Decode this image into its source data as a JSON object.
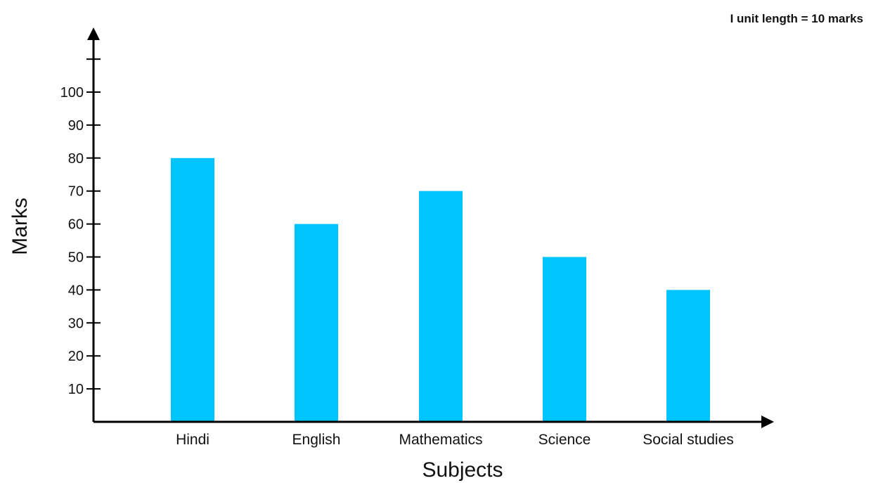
{
  "chart_data": {
    "type": "bar",
    "categories": [
      "Hindi",
      "English",
      "Mathematics",
      "Science",
      "Social studies"
    ],
    "values": [
      80,
      60,
      70,
      50,
      40
    ],
    "xlabel": "Subjects",
    "ylabel": "Marks",
    "yticks": [
      10,
      20,
      30,
      40,
      50,
      60,
      70,
      80,
      90,
      100
    ],
    "ylim": [
      0,
      110
    ],
    "grid": false,
    "legend": "none",
    "bar_color": "#00C4FF",
    "axis_color": "#000000",
    "annotation": "I unit length = 10 marks"
  }
}
